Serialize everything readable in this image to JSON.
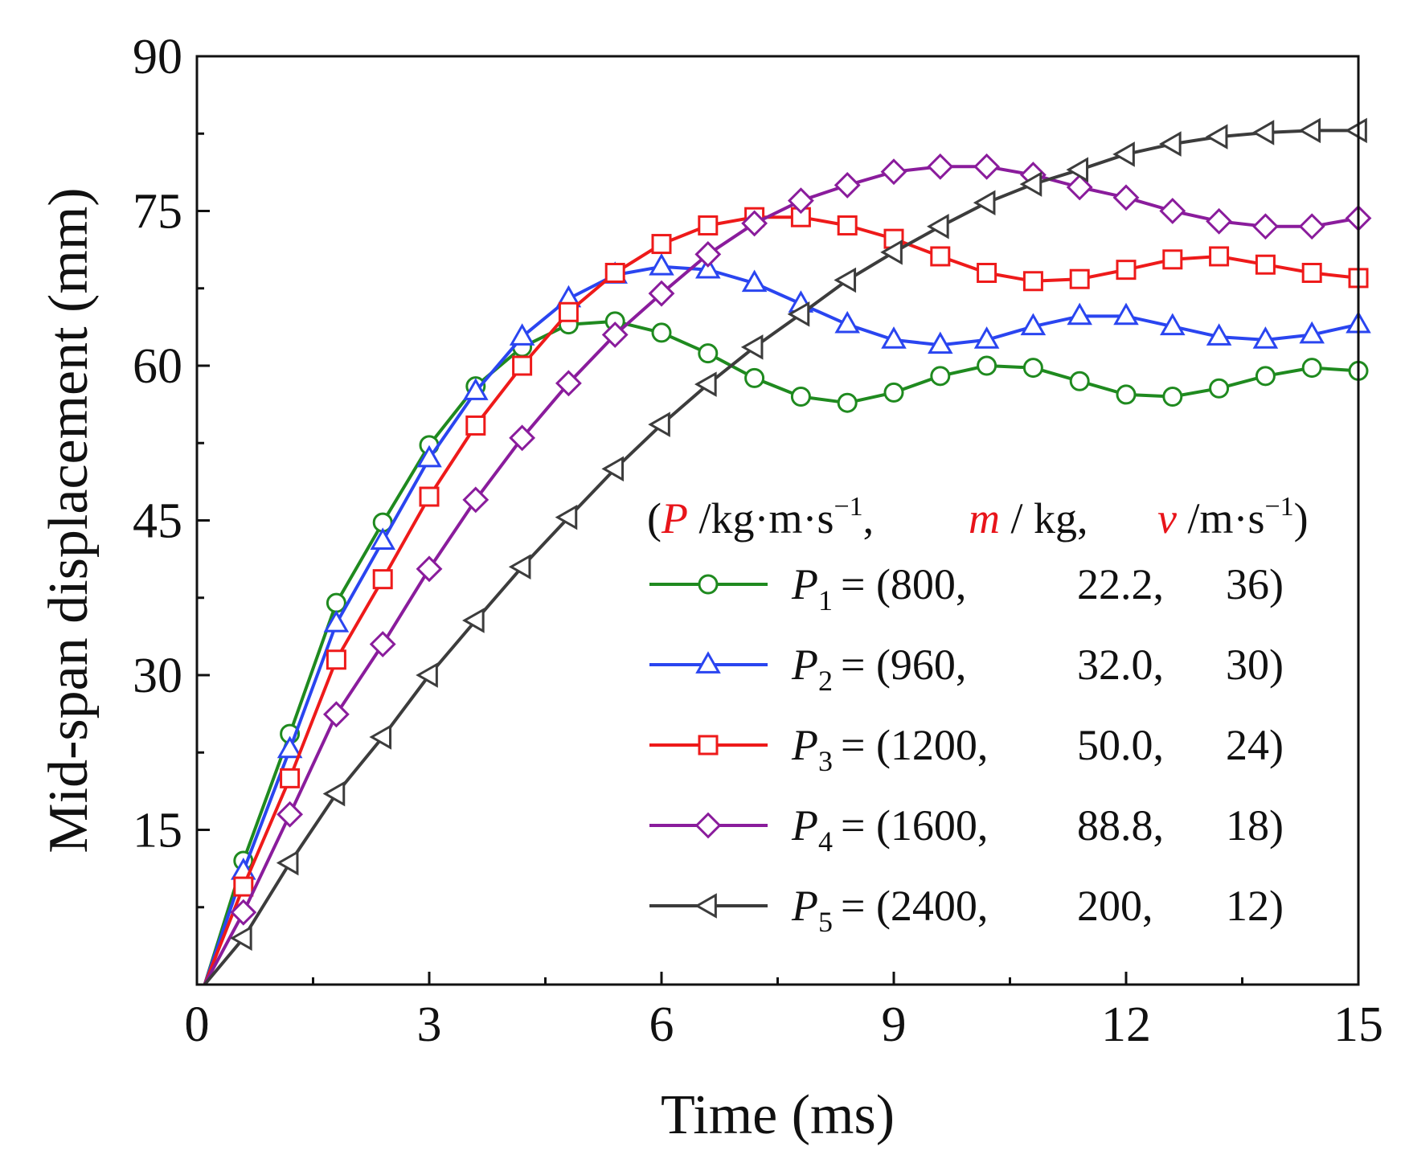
{
  "chart_data": {
    "type": "line",
    "xlabel": "Time (ms)",
    "ylabel": "Mid-span displacement (mm)",
    "xlim": [
      0,
      15
    ],
    "ylim": [
      0,
      90
    ],
    "xticks": [
      0,
      3,
      6,
      9,
      12,
      15
    ],
    "yticks": [
      15,
      30,
      45,
      60,
      75,
      90
    ],
    "grid": false,
    "legend_position": "bottom-right",
    "legend_header": {
      "open": "(",
      "var1": "P",
      "unit1": " /kg·m·s",
      "exp1": "−1",
      "sep1": ",",
      "var2": "m",
      "unit2": " / kg,",
      "var3": "v",
      "unit3": " /m·s",
      "exp3": "−1",
      "close": ")"
    },
    "series": [
      {
        "name": "P1",
        "label": "P",
        "sub": "1",
        "eq": "= (800,",
        "m_val": "22.2,",
        "v_val": "36)",
        "color": "#1f8a1f",
        "marker": "circle",
        "x": [
          0.1,
          0.6,
          1.2,
          1.8,
          2.4,
          3.0,
          3.6,
          4.2,
          4.8,
          5.4,
          6.0,
          6.6,
          7.2,
          7.8,
          8.4,
          9.0,
          9.6,
          10.2,
          10.8,
          11.4,
          12.0,
          12.6,
          13.2,
          13.8,
          14.4,
          15.0
        ],
        "y": [
          0,
          12.0,
          24.3,
          37.0,
          44.8,
          52.3,
          58.0,
          61.8,
          64.0,
          64.3,
          63.2,
          61.2,
          58.8,
          57.0,
          56.4,
          57.4,
          59.0,
          60.0,
          59.8,
          58.5,
          57.2,
          57.0,
          57.8,
          59.0,
          59.8,
          59.5
        ]
      },
      {
        "name": "P2",
        "label": "P",
        "sub": "2",
        "eq": "= (960,",
        "m_val": "32.0,",
        "v_val": "30)",
        "color": "#2a45f0",
        "marker": "triangle-up",
        "x": [
          0.1,
          0.6,
          1.2,
          1.8,
          2.4,
          3.0,
          3.6,
          4.2,
          4.8,
          5.4,
          6.0,
          6.6,
          7.2,
          7.8,
          8.4,
          9.0,
          9.6,
          10.2,
          10.8,
          11.4,
          12.0,
          12.6,
          13.2,
          13.8,
          14.4,
          15.0
        ],
        "y": [
          0,
          11.0,
          22.8,
          35.0,
          43.0,
          51.0,
          57.5,
          62.8,
          66.5,
          68.8,
          69.6,
          69.3,
          68.0,
          66.0,
          64.0,
          62.5,
          62.0,
          62.5,
          63.8,
          64.8,
          64.8,
          63.8,
          62.8,
          62.5,
          63.0,
          64.0
        ]
      },
      {
        "name": "P3",
        "label": "P",
        "sub": "3",
        "eq": "= (1200,",
        "m_val": "50.0,",
        "v_val": "24)",
        "color": "#ee1a1a",
        "marker": "square",
        "x": [
          0.1,
          0.6,
          1.2,
          1.8,
          2.4,
          3.0,
          3.6,
          4.2,
          4.8,
          5.4,
          6.0,
          6.6,
          7.2,
          7.8,
          8.4,
          9.0,
          9.6,
          10.2,
          10.8,
          11.4,
          12.0,
          12.6,
          13.2,
          13.8,
          14.4,
          15.0
        ],
        "y": [
          0,
          9.5,
          20.0,
          31.5,
          39.3,
          47.3,
          54.2,
          60.0,
          65.2,
          69.0,
          71.8,
          73.6,
          74.4,
          74.4,
          73.6,
          72.3,
          70.6,
          69.0,
          68.2,
          68.4,
          69.3,
          70.3,
          70.6,
          69.8,
          69.0,
          68.5
        ]
      },
      {
        "name": "P4",
        "label": "P",
        "sub": "4",
        "eq": "= (1600,",
        "m_val": "88.8,",
        "v_val": "18)",
        "color": "#8a1c9c",
        "marker": "diamond",
        "x": [
          0.1,
          0.6,
          1.2,
          1.8,
          2.4,
          3.0,
          3.6,
          4.2,
          4.8,
          5.4,
          6.0,
          6.6,
          7.2,
          7.8,
          8.4,
          9.0,
          9.6,
          10.2,
          10.8,
          11.4,
          12.0,
          12.6,
          13.2,
          13.8,
          14.4,
          15.0
        ],
        "y": [
          0,
          7.0,
          16.5,
          26.2,
          33.0,
          40.3,
          47.0,
          53.0,
          58.3,
          63.0,
          67.0,
          70.8,
          73.8,
          76.0,
          77.5,
          78.8,
          79.3,
          79.3,
          78.5,
          77.3,
          76.3,
          75.0,
          74.0,
          73.5,
          73.5,
          74.3
        ]
      },
      {
        "name": "P5",
        "label": "P",
        "sub": "5",
        "eq": "= (2400,",
        "m_val": "200,",
        "v_val": "12)",
        "color": "#3c3c3c",
        "marker": "triangle-left",
        "x": [
          0.1,
          0.6,
          1.2,
          1.8,
          2.4,
          3.0,
          3.6,
          4.2,
          4.8,
          5.4,
          6.0,
          6.6,
          7.2,
          7.8,
          8.4,
          9.0,
          9.6,
          10.2,
          10.8,
          11.4,
          12.0,
          12.6,
          13.2,
          13.8,
          14.4,
          15.0
        ],
        "y": [
          0,
          4.5,
          11.8,
          18.5,
          24.0,
          30.0,
          35.3,
          40.5,
          45.3,
          50.0,
          54.3,
          58.2,
          61.8,
          65.0,
          68.3,
          71.0,
          73.5,
          75.8,
          77.6,
          79.0,
          80.5,
          81.5,
          82.2,
          82.6,
          82.8,
          82.8
        ]
      }
    ]
  }
}
